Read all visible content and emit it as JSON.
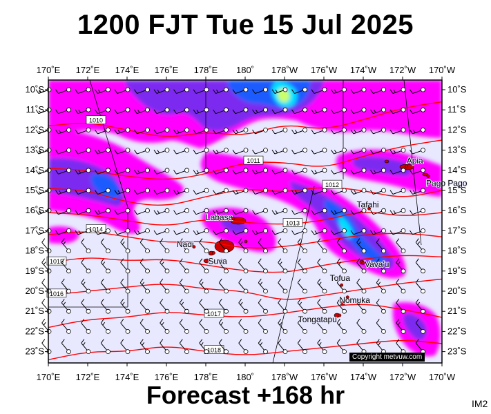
{
  "title": "1200 FJT Tue 15 Jul 2025",
  "footer": "Forecast +168 hr",
  "code": "IM2",
  "copyright": "Copyright metvuw.com",
  "colors": {
    "background": "#e8e8ff",
    "isobar": "#ff0000",
    "rain_light": "#ff00ff",
    "rain_mid": "#7d2cf0",
    "rain_heavy": "#1e5bff",
    "rain_extreme": "#00e0ff",
    "land": "#cc0000"
  },
  "map": {
    "lon_labels": [
      "170˚E",
      "172˚E",
      "174˚E",
      "176˚E",
      "178˚E",
      "180˚",
      "178˚W",
      "176˚W",
      "174˚W",
      "172˚W",
      "170˚W"
    ],
    "lat_labels": [
      "10˚S",
      "11˚S",
      "12˚S",
      "13˚S",
      "14˚S",
      "15˚S",
      "16˚S",
      "17˚S",
      "18˚S",
      "19˚S",
      "20˚S",
      "21˚S",
      "22˚S",
      "23˚S"
    ],
    "places": [
      {
        "name": "Apia",
        "lon": -171.8,
        "lat": -13.8
      },
      {
        "name": "Pago Pago",
        "lon": -170.7,
        "lat": -14.3
      },
      {
        "name": "Tafahi",
        "lon": -173.7,
        "lat": -15.9
      },
      {
        "name": "Labasa",
        "lon": 179.4,
        "lat": -16.4
      },
      {
        "name": "Nadi",
        "lon": 177.4,
        "lat": -17.8
      },
      {
        "name": "Suva",
        "lon": 178.4,
        "lat": -18.1
      },
      {
        "name": "Vava'u",
        "lon": -174.0,
        "lat": -18.6
      },
      {
        "name": "Tofua",
        "lon": -175.1,
        "lat": -19.7
      },
      {
        "name": "Nomuka",
        "lon": -174.8,
        "lat": -20.3
      },
      {
        "name": "Tongatapu",
        "lon": -175.2,
        "lat": -21.2
      }
    ],
    "isobars": [
      {
        "label": "1010",
        "points": [
          [
            170,
            -11.8
          ],
          [
            172,
            -11.6
          ],
          [
            174,
            -12.0
          ],
          [
            176,
            -12.4
          ],
          [
            178,
            -12.1
          ],
          [
            180,
            -12.3
          ],
          [
            -178,
            -11.7
          ],
          [
            -176,
            -12.0
          ],
          [
            -174,
            -11.5
          ],
          [
            -172,
            -10.9
          ],
          [
            -170,
            -10.6
          ]
        ]
      },
      {
        "label": "1011",
        "points": [
          [
            170,
            -13.9
          ],
          [
            172,
            -14.0
          ],
          [
            174,
            -14.3
          ],
          [
            176,
            -14.5
          ],
          [
            178,
            -14.2
          ],
          [
            180,
            -13.6
          ],
          [
            -178,
            -13.6
          ],
          [
            -176,
            -13.9
          ],
          [
            -174,
            -13.3
          ],
          [
            -172,
            -12.8
          ],
          [
            -170,
            -12.5
          ]
        ]
      },
      {
        "label": "1012",
        "points": [
          [
            170,
            -14.9
          ],
          [
            172,
            -15.0
          ],
          [
            174,
            -15.6
          ],
          [
            176,
            -15.8
          ],
          [
            178,
            -15.3
          ],
          [
            180,
            -14.9
          ],
          [
            -178,
            -15.1
          ],
          [
            -176,
            -14.8
          ],
          [
            -174,
            -15.0
          ],
          [
            -172,
            -15.4
          ],
          [
            -170,
            -15.0
          ]
        ]
      },
      {
        "label": "1013",
        "points": [
          [
            170,
            -16.1
          ],
          [
            172,
            -16.2
          ],
          [
            174,
            -16.5
          ],
          [
            176,
            -16.8
          ],
          [
            178,
            -16.4
          ],
          [
            180,
            -16.6
          ],
          [
            -178,
            -16.7
          ],
          [
            -176,
            -16.5
          ],
          [
            -174,
            -16.0
          ],
          [
            -172,
            -16.3
          ],
          [
            -170,
            -16.1
          ]
        ]
      },
      {
        "label": "1014",
        "points": [
          [
            170,
            -17.2
          ],
          [
            172,
            -17.0
          ],
          [
            174,
            -17.3
          ],
          [
            176,
            -17.6
          ],
          [
            178,
            -17.5
          ],
          [
            180,
            -17.9
          ],
          [
            -178,
            -17.8
          ],
          [
            -176,
            -17.5
          ],
          [
            -174,
            -17.2
          ],
          [
            -172,
            -17.1
          ],
          [
            -170,
            -17.3
          ]
        ]
      },
      {
        "label": "1015",
        "points": [
          [
            170,
            -18.6
          ],
          [
            172,
            -18.3
          ],
          [
            174,
            -18.5
          ],
          [
            176,
            -18.4
          ],
          [
            178,
            -18.7
          ],
          [
            180,
            -19.0
          ],
          [
            -178,
            -19.1
          ],
          [
            -176,
            -18.7
          ],
          [
            -174,
            -18.4
          ],
          [
            -172,
            -18.2
          ],
          [
            -170,
            -18.3
          ]
        ]
      },
      {
        "label": "1016",
        "points": [
          [
            170,
            -20.2
          ],
          [
            172,
            -20.0
          ],
          [
            174,
            -19.8
          ],
          [
            176,
            -19.6
          ],
          [
            178,
            -19.9
          ],
          [
            180,
            -20.0
          ],
          [
            -178,
            -20.5
          ],
          [
            -176,
            -20.2
          ],
          [
            -174,
            -19.9
          ],
          [
            -172,
            -19.6
          ],
          [
            -170,
            -19.4
          ]
        ]
      },
      {
        "label": "1017",
        "points": [
          [
            170,
            -21.8
          ],
          [
            172,
            -21.4
          ],
          [
            174,
            -21.3
          ],
          [
            176,
            -21.0
          ],
          [
            178,
            -21.2
          ],
          [
            180,
            -21.3
          ],
          [
            -178,
            -21.1
          ],
          [
            -176,
            -20.8
          ],
          [
            -174,
            -20.6
          ],
          [
            -172,
            -20.9
          ],
          [
            -170,
            -21.3
          ]
        ]
      },
      {
        "label": "1018",
        "points": [
          [
            170,
            -23.4
          ],
          [
            172,
            -23.0
          ],
          [
            174,
            -23.0
          ],
          [
            176,
            -22.7
          ],
          [
            178,
            -23.0
          ],
          [
            180,
            -23.2
          ],
          [
            -178,
            -23.0
          ],
          [
            -176,
            -22.8
          ],
          [
            -174,
            -22.6
          ],
          [
            -172,
            -22.4
          ],
          [
            -170,
            -22.6
          ]
        ]
      }
    ]
  }
}
